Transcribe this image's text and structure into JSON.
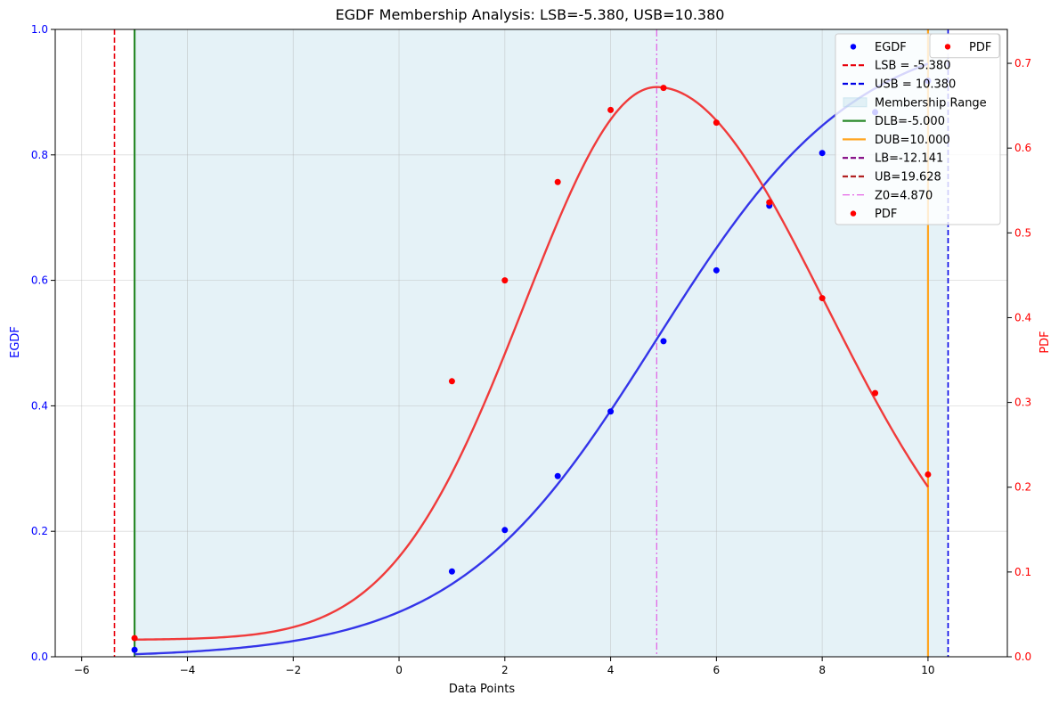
{
  "chart_data": {
    "type": "line",
    "title": "EGDF Membership Analysis: LSB=-5.380, USB=10.380",
    "xlabel": "Data Points",
    "ylabel_left": "EGDF",
    "ylabel_right": "PDF",
    "xlim": [
      -6.5,
      11.5
    ],
    "ylim_left": [
      0,
      1.0
    ],
    "ylim_right": [
      0,
      0.74
    ],
    "x_ticks": [
      -6,
      -4,
      -2,
      0,
      2,
      4,
      6,
      8,
      10
    ],
    "y_ticks_left": [
      0.0,
      0.2,
      0.4,
      0.6,
      0.8,
      1.0
    ],
    "y_ticks_right": [
      0.0,
      0.1,
      0.2,
      0.3,
      0.4,
      0.5,
      0.6,
      0.7
    ],
    "grid": true,
    "membership_range": {
      "from": -5.0,
      "to": 10.38,
      "color": "#add8e6",
      "label": "Membership Range"
    },
    "vlines": [
      {
        "name": "LSB = -5.380",
        "x": -5.38,
        "color": "#e8000b",
        "style": "dashed"
      },
      {
        "name": "USB = 10.380",
        "x": 10.38,
        "color": "#0000e6",
        "style": "dashed"
      },
      {
        "name": "DLB=-5.000",
        "x": -5.0,
        "color": "#2a8a2a",
        "style": "solid"
      },
      {
        "name": "DUB=10.000",
        "x": 10.0,
        "color": "#ffa520",
        "style": "solid"
      },
      {
        "name": "Z0=4.870",
        "x": 4.87,
        "color": "#e040e0",
        "style": "dashdot"
      }
    ],
    "egdf_points": {
      "name": "EGDF",
      "color": "#0000ff",
      "x": [
        -5,
        1,
        2,
        3,
        4,
        5,
        6,
        7,
        8,
        9,
        10
      ],
      "y": [
        0.011,
        0.136,
        0.202,
        0.288,
        0.391,
        0.503,
        0.616,
        0.719,
        0.803,
        0.868,
        0.918
      ]
    },
    "egdf_curve": {
      "color": "#2a2ae8",
      "x0": 4.85,
      "scale": 1.9,
      "lower": -0.0016,
      "upper": 1.0082
    },
    "pdf_points": {
      "name": "PDF",
      "color": "#ff0000",
      "x": [
        -5,
        1,
        2,
        3,
        4,
        5,
        6,
        7,
        8,
        9,
        10
      ],
      "y": [
        0.022,
        0.325,
        0.444,
        0.56,
        0.645,
        0.671,
        0.63,
        0.536,
        0.423,
        0.311,
        0.215
      ]
    },
    "pdf_curve": {
      "color": "#f03030",
      "peak": 0.672,
      "center": 4.87,
      "base": 0.02,
      "sigma_left": 2.5,
      "sigma_right": 3.2
    },
    "legend_left": {
      "location": "upper right",
      "entries": [
        {
          "label": "EGDF",
          "kind": "marker",
          "color": "#0000ff"
        },
        {
          "label": "LSB = -5.380",
          "kind": "dashed",
          "color": "#e8000b"
        },
        {
          "label": "USB = 10.380",
          "kind": "dashed",
          "color": "#0000e6"
        },
        {
          "label": "Membership Range",
          "kind": "patch",
          "color": "#add8e6"
        },
        {
          "label": "DLB=-5.000",
          "kind": "solid",
          "color": "#2a8a2a"
        },
        {
          "label": "DUB=10.000",
          "kind": "solid",
          "color": "#ffa520"
        },
        {
          "label": "LB=-12.141",
          "kind": "dashed",
          "color": "#800080"
        },
        {
          "label": "UB=19.628",
          "kind": "dashed",
          "color": "#b22222"
        },
        {
          "label": "Z0=4.870",
          "kind": "dashdot",
          "color": "#e040e0"
        },
        {
          "label": "PDF",
          "kind": "marker",
          "color": "#ff0000"
        }
      ]
    },
    "legend_right": {
      "location": "upper right",
      "entries": [
        {
          "label": "PDF",
          "kind": "marker",
          "color": "#ff0000"
        }
      ]
    }
  }
}
